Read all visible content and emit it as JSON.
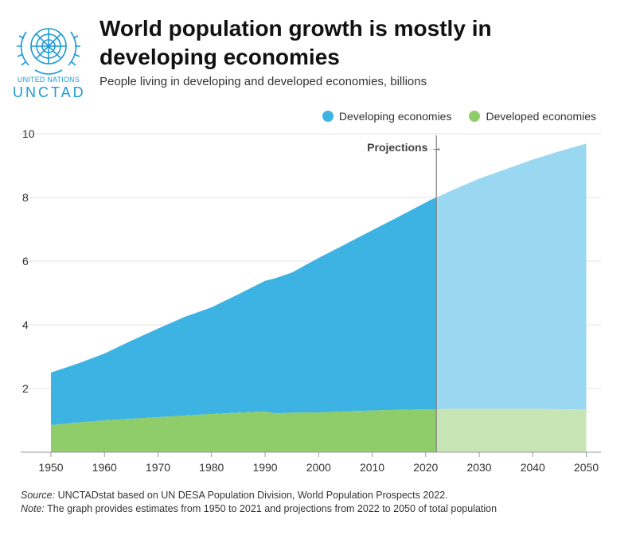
{
  "header": {
    "title": "World population growth is mostly in developing economies",
    "subtitle": "People living in developing and developed economies, billions"
  },
  "logo": {
    "org_line1": "UNITED NATIONS",
    "org_line2": "UNCTAD",
    "icon": "un-emblem-icon"
  },
  "chart_data": {
    "type": "area",
    "stacked": true,
    "x": [
      1950,
      1955,
      1960,
      1965,
      1970,
      1975,
      1980,
      1985,
      1990,
      1992,
      1995,
      2000,
      2005,
      2010,
      2015,
      2021,
      2022,
      2025,
      2030,
      2035,
      2040,
      2045,
      2050
    ],
    "series": [
      {
        "name": "Developing economies",
        "color": "#3db3e3",
        "projection_color": "#9ad8f1",
        "values": [
          1.65,
          1.85,
          2.1,
          2.45,
          2.78,
          3.1,
          3.35,
          3.72,
          4.1,
          4.25,
          4.4,
          4.85,
          5.25,
          5.66,
          6.07,
          6.58,
          6.65,
          6.87,
          7.23,
          7.53,
          7.83,
          8.1,
          8.35
        ]
      },
      {
        "name": "Developed economies",
        "color": "#8fcd6b",
        "projection_color": "#c7e5b5",
        "values": [
          0.85,
          0.93,
          1.0,
          1.05,
          1.1,
          1.15,
          1.2,
          1.24,
          1.28,
          1.22,
          1.24,
          1.25,
          1.28,
          1.31,
          1.33,
          1.35,
          1.35,
          1.36,
          1.36,
          1.36,
          1.36,
          1.35,
          1.34
        ]
      }
    ],
    "ylim": [
      0,
      10
    ],
    "xlim": [
      1950,
      2052
    ],
    "yticks": [
      2,
      4,
      6,
      8,
      10
    ],
    "xticks": [
      1950,
      1960,
      1970,
      1980,
      1990,
      2000,
      2010,
      2020,
      2030,
      2040,
      2050
    ],
    "projection_start": 2022,
    "annotation": "Projections →",
    "grid": true,
    "legend_position": "top-right"
  },
  "footer": {
    "source_label": "Source:",
    "source_text": " UNCTADstat based on UN DESA Population Division, World Population Prospects 2022.",
    "note_label": "Note:",
    "note_text": " The graph provides estimates from 1950 to 2021 and projections from 2022 to 2050 of total population"
  }
}
